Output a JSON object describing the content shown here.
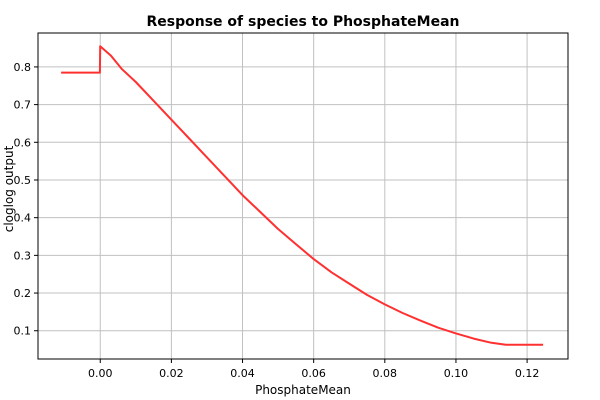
{
  "chart_data": {
    "type": "line",
    "title": "Response of species to PhosphateMean",
    "xlabel": "PhosphateMean",
    "ylabel": "cloglog output",
    "xlim": [
      -0.0175,
      0.1315
    ],
    "ylim": [
      0.025,
      0.89
    ],
    "x_ticks": [
      0.0,
      0.02,
      0.04,
      0.06,
      0.08,
      0.1,
      0.12
    ],
    "x_tick_labels": [
      "0.00",
      "0.02",
      "0.04",
      "0.06",
      "0.08",
      "0.10",
      "0.12"
    ],
    "y_ticks": [
      0.1,
      0.2,
      0.3,
      0.4,
      0.5,
      0.6,
      0.7,
      0.8
    ],
    "y_tick_labels": [
      "0.1",
      "0.2",
      "0.3",
      "0.4",
      "0.5",
      "0.6",
      "0.7",
      "0.8"
    ],
    "grid": true,
    "series": [
      {
        "color": "#ff3030",
        "x": [
          -0.011,
          -0.0001,
          0.0,
          0.003,
          0.006,
          0.01,
          0.015,
          0.02,
          0.025,
          0.03,
          0.035,
          0.04,
          0.045,
          0.05,
          0.055,
          0.06,
          0.065,
          0.07,
          0.075,
          0.08,
          0.085,
          0.09,
          0.095,
          0.1,
          0.105,
          0.11,
          0.114,
          0.12,
          0.1245
        ],
        "y": [
          0.785,
          0.785,
          0.855,
          0.83,
          0.795,
          0.76,
          0.71,
          0.66,
          0.61,
          0.56,
          0.51,
          0.46,
          0.415,
          0.37,
          0.33,
          0.29,
          0.255,
          0.225,
          0.195,
          0.17,
          0.147,
          0.127,
          0.108,
          0.093,
          0.079,
          0.068,
          0.063,
          0.063,
          0.063
        ]
      }
    ]
  }
}
